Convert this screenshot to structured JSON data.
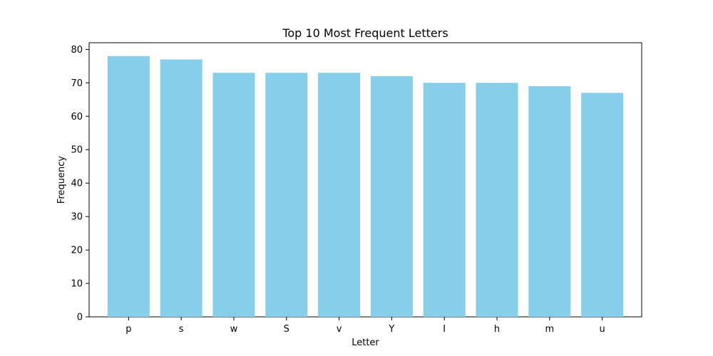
{
  "chart_data": {
    "type": "bar",
    "title": "Top 10 Most Frequent Letters",
    "xlabel": "Letter",
    "ylabel": "Frequency",
    "categories": [
      "p",
      "s",
      "w",
      "S",
      "v",
      "Y",
      "I",
      "h",
      "m",
      "u"
    ],
    "values": [
      78,
      77,
      73,
      73,
      73,
      72,
      70,
      70,
      69,
      67
    ],
    "ylim": [
      0,
      82
    ],
    "yticks": [
      0,
      10,
      20,
      30,
      40,
      50,
      60,
      70,
      80
    ],
    "ytick_labels": [
      "0",
      "10",
      "20",
      "30",
      "40",
      "50",
      "60",
      "70",
      "80"
    ],
    "grid": false,
    "bar_color": "#87CEEB"
  }
}
